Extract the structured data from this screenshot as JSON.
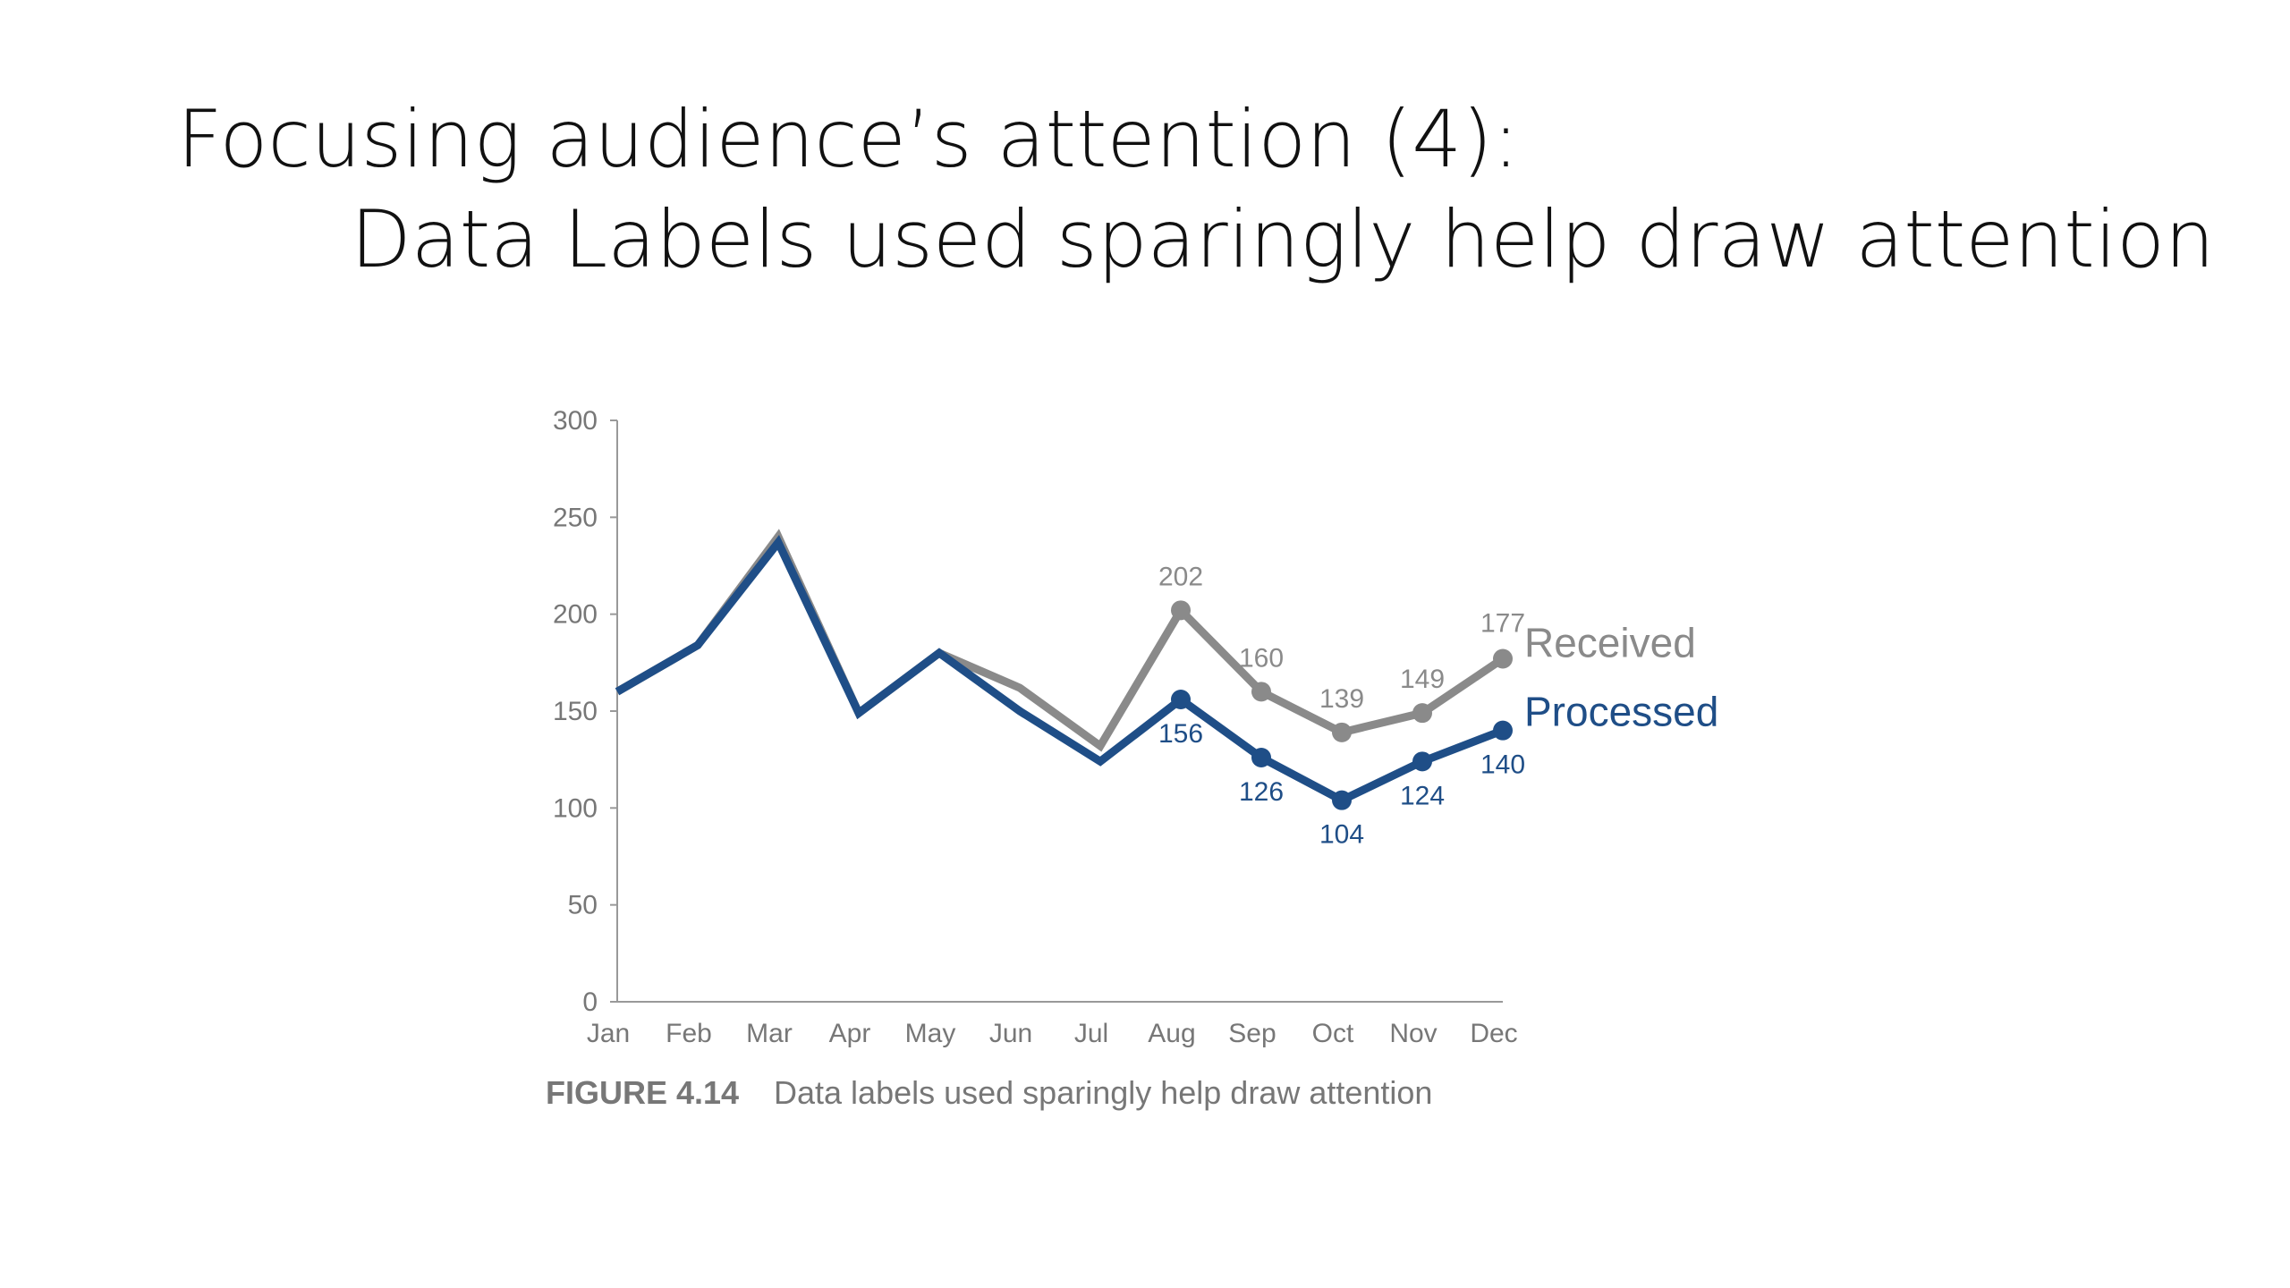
{
  "slide": {
    "title_line1": "Focusing audience’s attention (4):",
    "title_line2": "Data Labels used sparingly help draw attention"
  },
  "chart_data": {
    "type": "line",
    "categories": [
      "Jan",
      "Feb",
      "Mar",
      "Apr",
      "May",
      "Jun",
      "Jul",
      "Aug",
      "Sep",
      "Oct",
      "Nov",
      "Dec"
    ],
    "ylim": [
      0,
      300
    ],
    "yticks": [
      0,
      50,
      100,
      150,
      200,
      250,
      300
    ],
    "grid": false,
    "series": [
      {
        "name": "Received",
        "color": "#8a8a8a",
        "values": [
          160,
          184,
          240,
          149,
          180,
          162,
          132,
          202,
          160,
          139,
          149,
          177
        ],
        "labeled_from": 7
      },
      {
        "name": "Processed",
        "color": "#1f4e87",
        "values": [
          160,
          184,
          237,
          149,
          180,
          150,
          124,
          156,
          126,
          104,
          124,
          140
        ],
        "labeled_from": 7
      }
    ],
    "caption_figure": "FIGURE 4.14",
    "caption_text": "Data labels used sparingly help draw attention"
  }
}
